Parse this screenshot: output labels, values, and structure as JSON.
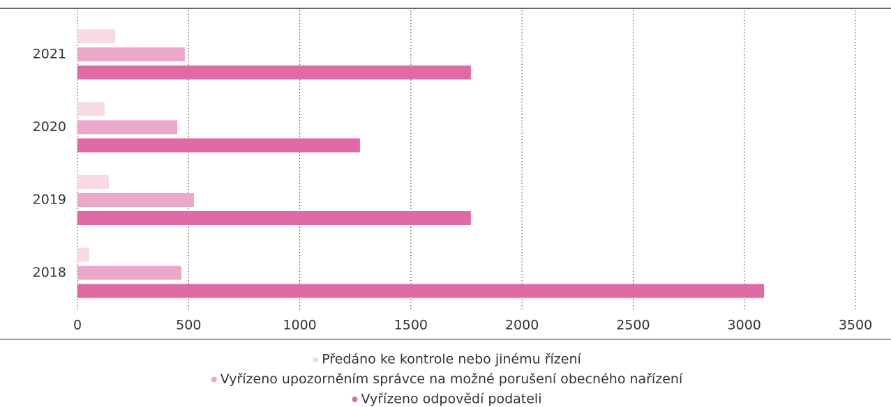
{
  "chart_data": {
    "type": "bar",
    "orientation": "horizontal",
    "categories": [
      "2021",
      "2020",
      "2019",
      "2018"
    ],
    "series": [
      {
        "name": "Předáno ke kontrole nebo jinému řízení",
        "color": "#f6dbe7",
        "values": [
          170,
          122,
          141,
          53
        ]
      },
      {
        "name": "Vyřízeno upozorněním správce na možné porušení obecného nařízení",
        "color": "#eca8c9",
        "values": [
          483,
          449,
          524,
          468
        ]
      },
      {
        "name": "Vyřízeno odpovědí podateli",
        "color": "#e06aa4",
        "values": [
          1770,
          1271,
          1770,
          3089
        ]
      }
    ],
    "xlim": [
      0,
      3500
    ],
    "xticks": [
      0,
      500,
      1000,
      1500,
      2000,
      2500,
      3000,
      3500
    ],
    "grid": true,
    "legend": "bottom"
  }
}
